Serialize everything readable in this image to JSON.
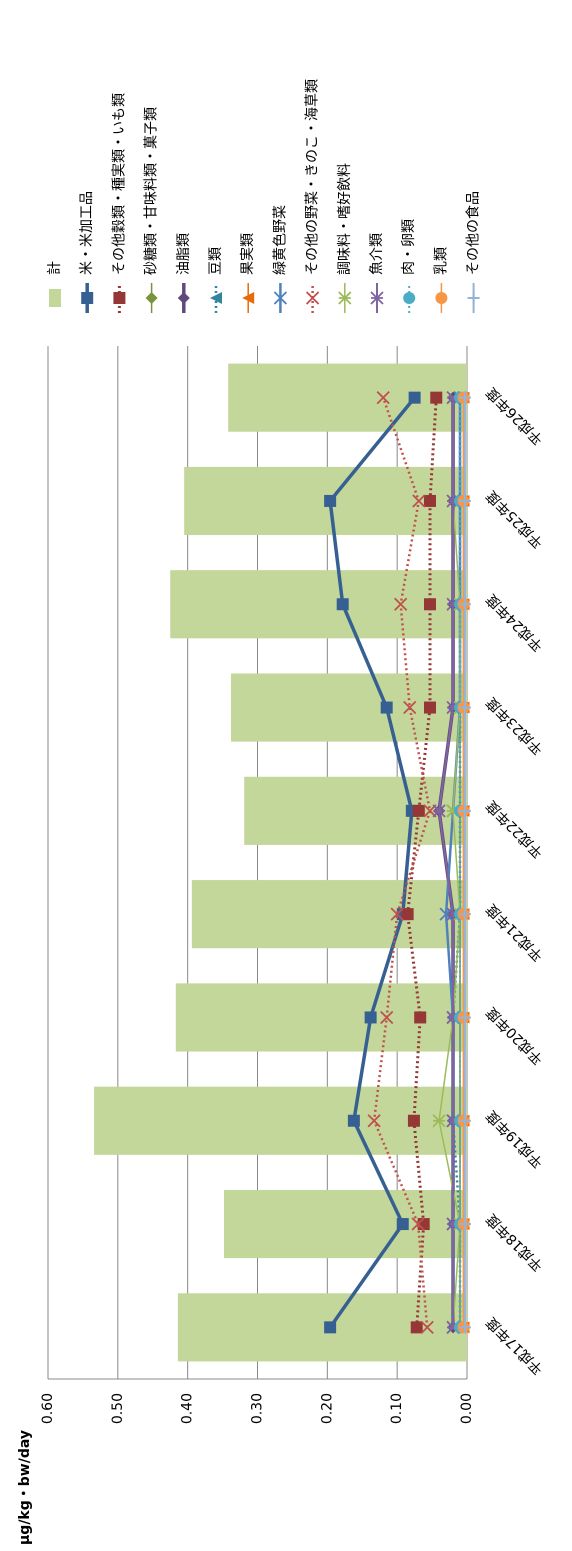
{
  "chart_data": {
    "type": "bar_line",
    "y_label": "μg/kg・bw/day",
    "categories": [
      "平成17年度",
      "平成18年度",
      "平成19年度",
      "平成20年度",
      "平成21年度",
      "平成22年度",
      "平成23年度",
      "平成24年度",
      "平成25年度",
      "平成26年度"
    ],
    "ylim": [
      0,
      0.6
    ],
    "yticks": [
      {
        "value": 0,
        "label": "0.00"
      },
      {
        "value": 0.1,
        "label": "0.10"
      },
      {
        "value": 0.2,
        "label": "0.20"
      },
      {
        "value": 0.3,
        "label": "0.30"
      },
      {
        "value": 0.4,
        "label": "0.40"
      },
      {
        "value": 0.5,
        "label": "0.50"
      },
      {
        "value": 0.6,
        "label": "0.60"
      }
    ],
    "grid": true,
    "series": [
      {
        "name": "計",
        "type": "bar",
        "color": "#c4d79b",
        "values": [
          0.414,
          0.348,
          0.534,
          0.417,
          0.394,
          0.319,
          0.338,
          0.425,
          0.405,
          0.342
        ]
      },
      {
        "name": "米・米加工品",
        "type": "line",
        "color": "#376092",
        "marker": "square",
        "dash": false,
        "width": 3.5,
        "values": [
          0.196,
          0.092,
          0.162,
          0.138,
          0.092,
          0.079,
          0.115,
          0.178,
          0.196,
          0.075
        ]
      },
      {
        "name": "その他穀類・種実類・いも類",
        "type": "line",
        "color": "#953735",
        "marker": "square",
        "dash": true,
        "width": 3,
        "values": [
          0.072,
          0.062,
          0.076,
          0.067,
          0.085,
          0.069,
          0.053,
          0.053,
          0.053,
          0.044
        ]
      },
      {
        "name": "砂糖類・甘味料類・菓子類",
        "type": "line",
        "color": "#77933c",
        "marker": "diamond",
        "dash": false,
        "width": 1.5,
        "values": [
          0.01,
          0.01,
          0.01,
          0.01,
          0.01,
          0.01,
          0.01,
          0.01,
          0.01,
          0.01
        ]
      },
      {
        "name": "油脂類",
        "type": "line",
        "color": "#604a7b",
        "marker": "diamond",
        "dash": false,
        "width": 3.5,
        "values": [
          0.02,
          0.02,
          0.02,
          0.02,
          0.02,
          0.04,
          0.02,
          0.02,
          0.02,
          0.02
        ]
      },
      {
        "name": "豆類",
        "type": "line",
        "color": "#31859c",
        "marker": "triangle",
        "dash": true,
        "width": 2.5,
        "values": [
          0.01,
          0.01,
          0.02,
          0.02,
          0.01,
          0.01,
          0.01,
          0.01,
          0.01,
          0.01
        ]
      },
      {
        "name": "果実類",
        "type": "line",
        "color": "#e46c0a",
        "marker": "triangle",
        "dash": false,
        "width": 1.5,
        "values": [
          0.005,
          0.005,
          0.005,
          0.005,
          0.005,
          0.005,
          0.005,
          0.005,
          0.005,
          0.005
        ]
      },
      {
        "name": "緑黄色野菜",
        "type": "line",
        "color": "#4f81bd",
        "marker": "x",
        "dash": false,
        "width": 2.5,
        "values": [
          0.02,
          0.02,
          0.02,
          0.02,
          0.03,
          0.02,
          0.01,
          0.01,
          0.01,
          0.01
        ]
      },
      {
        "name": "その他の野菜・きのこ・海草類",
        "type": "line",
        "color": "#c0504d",
        "marker": "x",
        "dash": true,
        "width": 2.5,
        "values": [
          0.057,
          0.07,
          0.133,
          0.115,
          0.1,
          0.053,
          0.082,
          0.095,
          0.069,
          0.12
        ]
      },
      {
        "name": "調味料・嗜好飲料",
        "type": "line",
        "color": "#9bbb59",
        "marker": "star",
        "dash": false,
        "width": 1.5,
        "values": [
          0.02,
          0.01,
          0.04,
          0.02,
          0.01,
          0.02,
          0.01,
          0.01,
          0.02,
          0.02
        ]
      },
      {
        "name": "魚介類",
        "type": "line",
        "color": "#8064a2",
        "marker": "star",
        "dash": false,
        "width": 2,
        "values": [
          0.02,
          0.02,
          0.02,
          0.02,
          0.02,
          0.04,
          0.02,
          0.02,
          0.02,
          0.02
        ]
      },
      {
        "name": "肉・卵類",
        "type": "line",
        "color": "#4bacc6",
        "marker": "circle",
        "dash": true,
        "width": 2,
        "values": [
          0.01,
          0.01,
          0.01,
          0.01,
          0.01,
          0.01,
          0.01,
          0.01,
          0.01,
          0.01
        ]
      },
      {
        "name": "乳類",
        "type": "line",
        "color": "#f79646",
        "marker": "circle",
        "dash": false,
        "width": 1.5,
        "values": [
          0.005,
          0.005,
          0.005,
          0.005,
          0.005,
          0.005,
          0.005,
          0.005,
          0.005,
          0.005
        ]
      },
      {
        "name": "その他の食品",
        "type": "line",
        "color": "#95b3d7",
        "marker": "plus",
        "dash": false,
        "width": 2,
        "values": [
          0.003,
          0.003,
          0.003,
          0.003,
          0.003,
          0.003,
          0.003,
          0.003,
          0.003,
          0.003
        ]
      }
    ]
  }
}
